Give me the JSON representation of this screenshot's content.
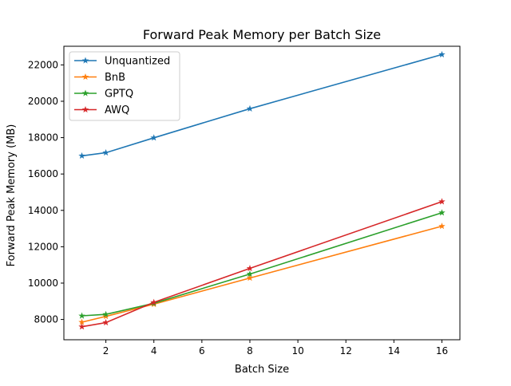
{
  "chart_data": {
    "type": "line",
    "title": "Forward Peak Memory per Batch Size",
    "xlabel": "Batch Size",
    "ylabel": "Forward Peak Memory (MB)",
    "xlim": [
      0.25,
      16.75
    ],
    "ylim": [
      6885,
      23025
    ],
    "xticks": [
      2,
      4,
      6,
      8,
      10,
      12,
      14,
      16
    ],
    "yticks": [
      8000,
      10000,
      12000,
      14000,
      16000,
      18000,
      20000,
      22000
    ],
    "grid": false,
    "legend": "top-left",
    "marker": "star",
    "x": [
      1,
      2,
      4,
      8,
      16
    ],
    "series": [
      {
        "name": "Unquantized",
        "color": "#1f77b4",
        "values": [
          17000,
          17170,
          17990,
          19590,
          22570
        ]
      },
      {
        "name": "BnB",
        "color": "#ff7f0e",
        "values": [
          7850,
          8170,
          8840,
          10280,
          13130
        ]
      },
      {
        "name": "GPTQ",
        "color": "#2ca02c",
        "values": [
          8200,
          8280,
          8890,
          10500,
          13870
        ]
      },
      {
        "name": "AWQ",
        "color": "#d62728",
        "values": [
          7600,
          7830,
          8940,
          10810,
          14480
        ]
      }
    ]
  }
}
